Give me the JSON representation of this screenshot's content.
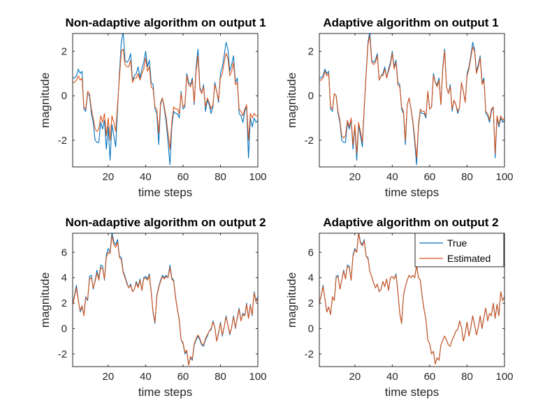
{
  "figure": {
    "colors": {
      "true": "#0072BD",
      "estimated": "#D95319",
      "axis": "#262626"
    },
    "legend": {
      "entries": [
        "True",
        "Estimated"
      ],
      "placement": "top-right",
      "shown_in_panel": 3
    }
  },
  "chart_data": [
    {
      "type": "line",
      "title": "Non-adaptive algorithm on output 1",
      "xlabel": "time steps",
      "ylabel": "magnitude",
      "xlim": [
        1,
        100
      ],
      "ylim": [
        -3.2,
        2.8
      ],
      "xticks": [
        20,
        40,
        60,
        80,
        100
      ],
      "yticks": [
        -2,
        0,
        2
      ],
      "series": [
        {
          "name": "True",
          "color": "#0072BD",
          "x_start": 1,
          "values": [
            0.8,
            0.8,
            0.9,
            1.2,
            1.0,
            1.1,
            -0.6,
            -0.7,
            0.1,
            0.0,
            -0.8,
            -1.2,
            -2.0,
            -2.1,
            -2.1,
            -1.2,
            -1.5,
            -1.1,
            -2.4,
            -1.4,
            -2.9,
            -1.3,
            -1.8,
            -2.3,
            -0.6,
            1.0,
            2.4,
            2.9,
            1.6,
            1.5,
            1.6,
            1.9,
            0.7,
            0.9,
            1.0,
            1.3,
            0.8,
            1.2,
            1.5,
            2.0,
            1.3,
            1.6,
            0.6,
            0.5,
            -0.6,
            -0.8,
            -2.2,
            -0.4,
            -0.1,
            -0.6,
            -1.2,
            -2.1,
            -3.1,
            -1.4,
            -0.7,
            -0.8,
            -0.8,
            -1.0,
            0.2,
            -0.6,
            -0.5,
            1.0,
            0.6,
            0.5,
            0.8,
            -0.4,
            1.3,
            2.1,
            0.4,
            0.1,
            0.5,
            -0.7,
            -0.2,
            -0.4,
            -0.8,
            -0.5,
            0.6,
            0.2,
            -0.3,
            1.0,
            1.3,
            1.8,
            2.4,
            2.1,
            1.1,
            1.4,
            1.8,
            0.6,
            0.8,
            -0.8,
            -0.9,
            -1.2,
            -0.7,
            -0.5,
            -2.8,
            -1.0,
            -1.4,
            -1.0,
            -1.2,
            -1.1
          ]
        },
        {
          "name": "Estimated",
          "color": "#D95319",
          "x_start": 1,
          "values": [
            0.6,
            0.6,
            0.7,
            0.9,
            0.7,
            0.8,
            -0.5,
            -0.6,
            0.2,
            0.1,
            -0.6,
            -1.0,
            -1.5,
            -1.6,
            -1.5,
            -0.9,
            -1.2,
            -0.8,
            -1.8,
            -1.0,
            -2.0,
            -0.9,
            -1.2,
            -1.6,
            -0.4,
            0.8,
            2.0,
            2.1,
            1.4,
            1.3,
            1.3,
            1.6,
            0.6,
            0.8,
            0.8,
            1.0,
            0.7,
            1.0,
            1.2,
            1.7,
            1.1,
            1.3,
            0.4,
            0.3,
            -0.5,
            -0.6,
            -1.7,
            -0.3,
            -0.1,
            -0.5,
            -1.0,
            -1.7,
            -2.4,
            -1.2,
            -0.5,
            -0.6,
            -0.6,
            -0.8,
            0.1,
            -0.5,
            -0.4,
            0.9,
            0.5,
            0.4,
            0.7,
            -0.3,
            1.1,
            1.8,
            0.3,
            0.1,
            0.4,
            -0.5,
            -0.1,
            -0.3,
            -0.6,
            -0.4,
            0.5,
            0.2,
            -0.2,
            0.8,
            1.0,
            1.5,
            1.9,
            1.7,
            0.9,
            1.1,
            1.5,
            0.5,
            0.6,
            -0.6,
            -0.7,
            -0.9,
            -0.6,
            -0.4,
            -2.0,
            -0.8,
            -1.0,
            -0.8,
            -0.9,
            -0.9
          ]
        }
      ]
    },
    {
      "type": "line",
      "title": "Adaptive algorithm on output 1",
      "xlabel": "time steps",
      "ylabel": "magnitude",
      "xlim": [
        1,
        100
      ],
      "ylim": [
        -3.2,
        2.8
      ],
      "xticks": [
        20,
        40,
        60,
        80,
        100
      ],
      "yticks": [
        -2,
        0,
        2
      ],
      "series": [
        {
          "name": "True",
          "color": "#0072BD",
          "x_start": 1,
          "values": [
            0.8,
            0.8,
            0.9,
            1.2,
            1.0,
            1.1,
            -0.6,
            -0.7,
            0.1,
            0.0,
            -0.8,
            -1.2,
            -2.0,
            -2.1,
            -2.1,
            -1.2,
            -1.5,
            -1.1,
            -2.4,
            -1.4,
            -2.9,
            -1.3,
            -1.8,
            -2.3,
            -0.6,
            1.0,
            2.4,
            2.9,
            1.6,
            1.5,
            1.6,
            1.9,
            0.7,
            0.9,
            1.0,
            1.3,
            0.8,
            1.2,
            1.5,
            2.0,
            1.3,
            1.6,
            0.6,
            0.5,
            -0.6,
            -0.8,
            -2.2,
            -0.4,
            -0.1,
            -0.6,
            -1.2,
            -2.1,
            -3.1,
            -1.4,
            -0.7,
            -0.8,
            -0.8,
            -1.0,
            0.2,
            -0.6,
            -0.5,
            1.0,
            0.6,
            0.5,
            0.8,
            -0.4,
            1.3,
            2.1,
            0.4,
            0.1,
            0.5,
            -0.7,
            -0.2,
            -0.4,
            -0.8,
            -0.5,
            0.6,
            0.2,
            -0.3,
            1.0,
            1.3,
            1.8,
            2.4,
            2.1,
            1.1,
            1.4,
            1.8,
            0.6,
            0.8,
            -0.8,
            -0.9,
            -1.2,
            -0.7,
            -0.5,
            -2.8,
            -1.0,
            -1.4,
            -1.0,
            -1.2,
            -1.1
          ]
        },
        {
          "name": "Estimated",
          "color": "#D95319",
          "x_start": 1,
          "values": [
            0.7,
            0.7,
            0.8,
            1.1,
            0.9,
            1.0,
            -0.5,
            -0.6,
            0.1,
            0.0,
            -0.7,
            -1.1,
            -1.8,
            -1.9,
            -1.8,
            -1.1,
            -1.4,
            -1.0,
            -2.2,
            -1.3,
            -2.6,
            -1.2,
            -1.6,
            -2.1,
            -0.5,
            0.9,
            2.3,
            2.7,
            1.5,
            1.4,
            1.5,
            1.8,
            0.7,
            0.9,
            0.9,
            1.2,
            0.8,
            1.1,
            1.4,
            1.9,
            1.2,
            1.5,
            0.5,
            0.4,
            -0.5,
            -0.7,
            -2.0,
            -0.4,
            -0.1,
            -0.6,
            -1.1,
            -1.9,
            -2.8,
            -1.3,
            -0.6,
            -0.7,
            -0.7,
            -0.9,
            0.2,
            -0.6,
            -0.5,
            0.9,
            0.6,
            0.4,
            0.7,
            -0.4,
            1.2,
            2.0,
            0.4,
            0.1,
            0.4,
            -0.6,
            -0.2,
            -0.4,
            -0.7,
            -0.5,
            0.6,
            0.2,
            -0.3,
            0.9,
            1.2,
            1.7,
            2.2,
            2.0,
            1.0,
            1.3,
            1.7,
            0.5,
            0.7,
            -0.7,
            -0.8,
            -1.1,
            -0.6,
            -0.5,
            -2.6,
            -0.9,
            -1.3,
            -0.9,
            -1.1,
            -1.0
          ]
        }
      ]
    },
    {
      "type": "line",
      "title": "Non-adaptive algorithm on output 2",
      "xlabel": "time steps",
      "ylabel": "magnitude",
      "xlim": [
        1,
        100
      ],
      "ylim": [
        -3.0,
        7.5
      ],
      "xticks": [
        20,
        40,
        60,
        80,
        100
      ],
      "yticks": [
        -2,
        0,
        2,
        4,
        6
      ],
      "series": [
        {
          "name": "True",
          "color": "#0072BD",
          "x_start": 1,
          "values": [
            2.0,
            2.6,
            3.4,
            2.3,
            1.3,
            1.7,
            1.1,
            2.5,
            2.2,
            4.1,
            4.2,
            3.1,
            3.8,
            4.6,
            3.9,
            5.0,
            4.9,
            3.8,
            5.8,
            6.3,
            6.0,
            7.6,
            6.8,
            6.6,
            7.0,
            5.7,
            5.6,
            4.5,
            4.1,
            3.6,
            3.2,
            3.5,
            2.9,
            3.1,
            3.7,
            3.3,
            3.9,
            3.0,
            4.0,
            4.1,
            3.9,
            4.3,
            2.9,
            1.2,
            0.4,
            2.6,
            3.3,
            3.8,
            4.2,
            4.0,
            4.2,
            4.0,
            5.0,
            4.0,
            3.8,
            2.5,
            1.5,
            0.7,
            -0.9,
            -1.2,
            -2.0,
            -1.8,
            -2.8,
            -2.3,
            -2.5,
            -1.3,
            -0.9,
            -0.6,
            -0.9,
            -1.3,
            -1.4,
            -0.9,
            -0.6,
            -0.2,
            -0.1,
            0.6,
            0.1,
            -1.0,
            -0.4,
            0.5,
            -0.6,
            0.1,
            1.0,
            0.3,
            -0.5,
            0.1,
            1.0,
            0.0,
            0.9,
            1.6,
            0.6,
            1.2,
            1.0,
            2.0,
            0.8,
            1.9,
            1.0,
            2.9,
            2.2,
            2.5
          ]
        },
        {
          "name": "Estimated",
          "color": "#D95319",
          "x_start": 1,
          "values": [
            1.9,
            2.5,
            3.2,
            2.2,
            1.4,
            1.8,
            1.0,
            2.4,
            2.3,
            3.9,
            4.0,
            3.2,
            3.7,
            4.4,
            3.8,
            4.8,
            4.7,
            3.9,
            5.6,
            6.0,
            5.9,
            7.3,
            6.6,
            6.4,
            6.8,
            5.6,
            5.4,
            4.4,
            4.0,
            3.5,
            3.2,
            3.4,
            2.9,
            3.1,
            3.6,
            3.2,
            3.8,
            3.0,
            3.9,
            4.0,
            3.8,
            4.2,
            2.8,
            1.3,
            0.5,
            2.5,
            3.2,
            3.7,
            4.1,
            3.9,
            4.1,
            4.0,
            4.8,
            3.9,
            3.7,
            2.4,
            1.5,
            0.6,
            -0.9,
            -1.1,
            -1.9,
            -1.7,
            -2.9,
            -2.2,
            -2.4,
            -1.2,
            -0.8,
            -0.5,
            -0.8,
            -1.2,
            -1.3,
            -0.8,
            -0.5,
            -0.2,
            0.0,
            0.5,
            0.1,
            -1.0,
            -0.3,
            0.4,
            -0.5,
            0.1,
            0.9,
            0.3,
            -0.4,
            0.1,
            0.9,
            0.1,
            0.8,
            1.5,
            0.6,
            1.1,
            1.0,
            1.9,
            0.8,
            1.8,
            1.1,
            2.8,
            2.1,
            2.4
          ]
        }
      ]
    },
    {
      "type": "line",
      "title": "Adaptive algorithm on output 2",
      "xlabel": "time steps",
      "ylabel": "magnitude",
      "xlim": [
        1,
        100
      ],
      "ylim": [
        -3.0,
        7.5
      ],
      "xticks": [
        20,
        40,
        60,
        80,
        100
      ],
      "yticks": [
        -2,
        0,
        2,
        4,
        6
      ],
      "legend": [
        "True",
        "Estimated"
      ],
      "series": [
        {
          "name": "True",
          "color": "#0072BD",
          "x_start": 1,
          "values": [
            2.0,
            2.6,
            3.4,
            2.3,
            1.3,
            1.7,
            1.1,
            2.5,
            2.2,
            4.1,
            4.2,
            3.1,
            3.8,
            4.6,
            3.9,
            5.0,
            4.9,
            3.8,
            5.8,
            6.3,
            6.0,
            7.6,
            6.8,
            6.6,
            7.0,
            5.7,
            5.6,
            4.5,
            4.1,
            3.6,
            3.2,
            3.5,
            2.9,
            3.1,
            3.7,
            3.3,
            3.9,
            3.0,
            4.0,
            4.1,
            3.9,
            4.3,
            2.9,
            1.2,
            0.4,
            2.6,
            3.3,
            3.8,
            4.2,
            4.0,
            4.2,
            4.0,
            5.0,
            4.0,
            3.8,
            2.5,
            1.5,
            0.7,
            -0.9,
            -1.2,
            -2.0,
            -1.8,
            -2.8,
            -2.3,
            -2.5,
            -1.3,
            -0.9,
            -0.6,
            -0.9,
            -1.3,
            -1.4,
            -0.9,
            -0.6,
            -0.2,
            -0.1,
            0.6,
            0.1,
            -1.0,
            -0.4,
            0.5,
            -0.6,
            0.1,
            1.0,
            0.3,
            -0.5,
            0.1,
            1.0,
            0.0,
            0.9,
            1.6,
            0.6,
            1.2,
            1.0,
            2.0,
            0.8,
            1.9,
            1.0,
            2.9,
            2.2,
            2.5
          ]
        },
        {
          "name": "Estimated",
          "color": "#D95319",
          "x_start": 1,
          "values": [
            2.0,
            2.6,
            3.3,
            2.3,
            1.3,
            1.7,
            1.1,
            2.5,
            2.2,
            4.0,
            4.1,
            3.1,
            3.8,
            4.5,
            3.9,
            4.9,
            4.8,
            3.8,
            5.7,
            6.2,
            6.0,
            7.5,
            6.7,
            6.5,
            6.9,
            5.7,
            5.5,
            4.5,
            4.1,
            3.6,
            3.2,
            3.5,
            2.9,
            3.1,
            3.7,
            3.3,
            3.9,
            3.0,
            4.0,
            4.1,
            3.9,
            4.2,
            2.9,
            1.2,
            0.4,
            2.6,
            3.3,
            3.8,
            4.2,
            4.0,
            4.2,
            4.0,
            4.9,
            4.0,
            3.8,
            2.5,
            1.5,
            0.7,
            -0.9,
            -1.2,
            -2.0,
            -1.8,
            -2.8,
            -2.3,
            -2.5,
            -1.3,
            -0.9,
            -0.6,
            -0.9,
            -1.3,
            -1.4,
            -0.9,
            -0.6,
            -0.2,
            -0.1,
            0.6,
            0.1,
            -1.0,
            -0.4,
            0.5,
            -0.6,
            0.1,
            1.0,
            0.3,
            -0.5,
            0.1,
            1.0,
            0.0,
            0.9,
            1.6,
            0.6,
            1.2,
            1.0,
            2.0,
            0.8,
            1.9,
            1.0,
            2.9,
            2.2,
            2.5
          ]
        }
      ]
    }
  ]
}
